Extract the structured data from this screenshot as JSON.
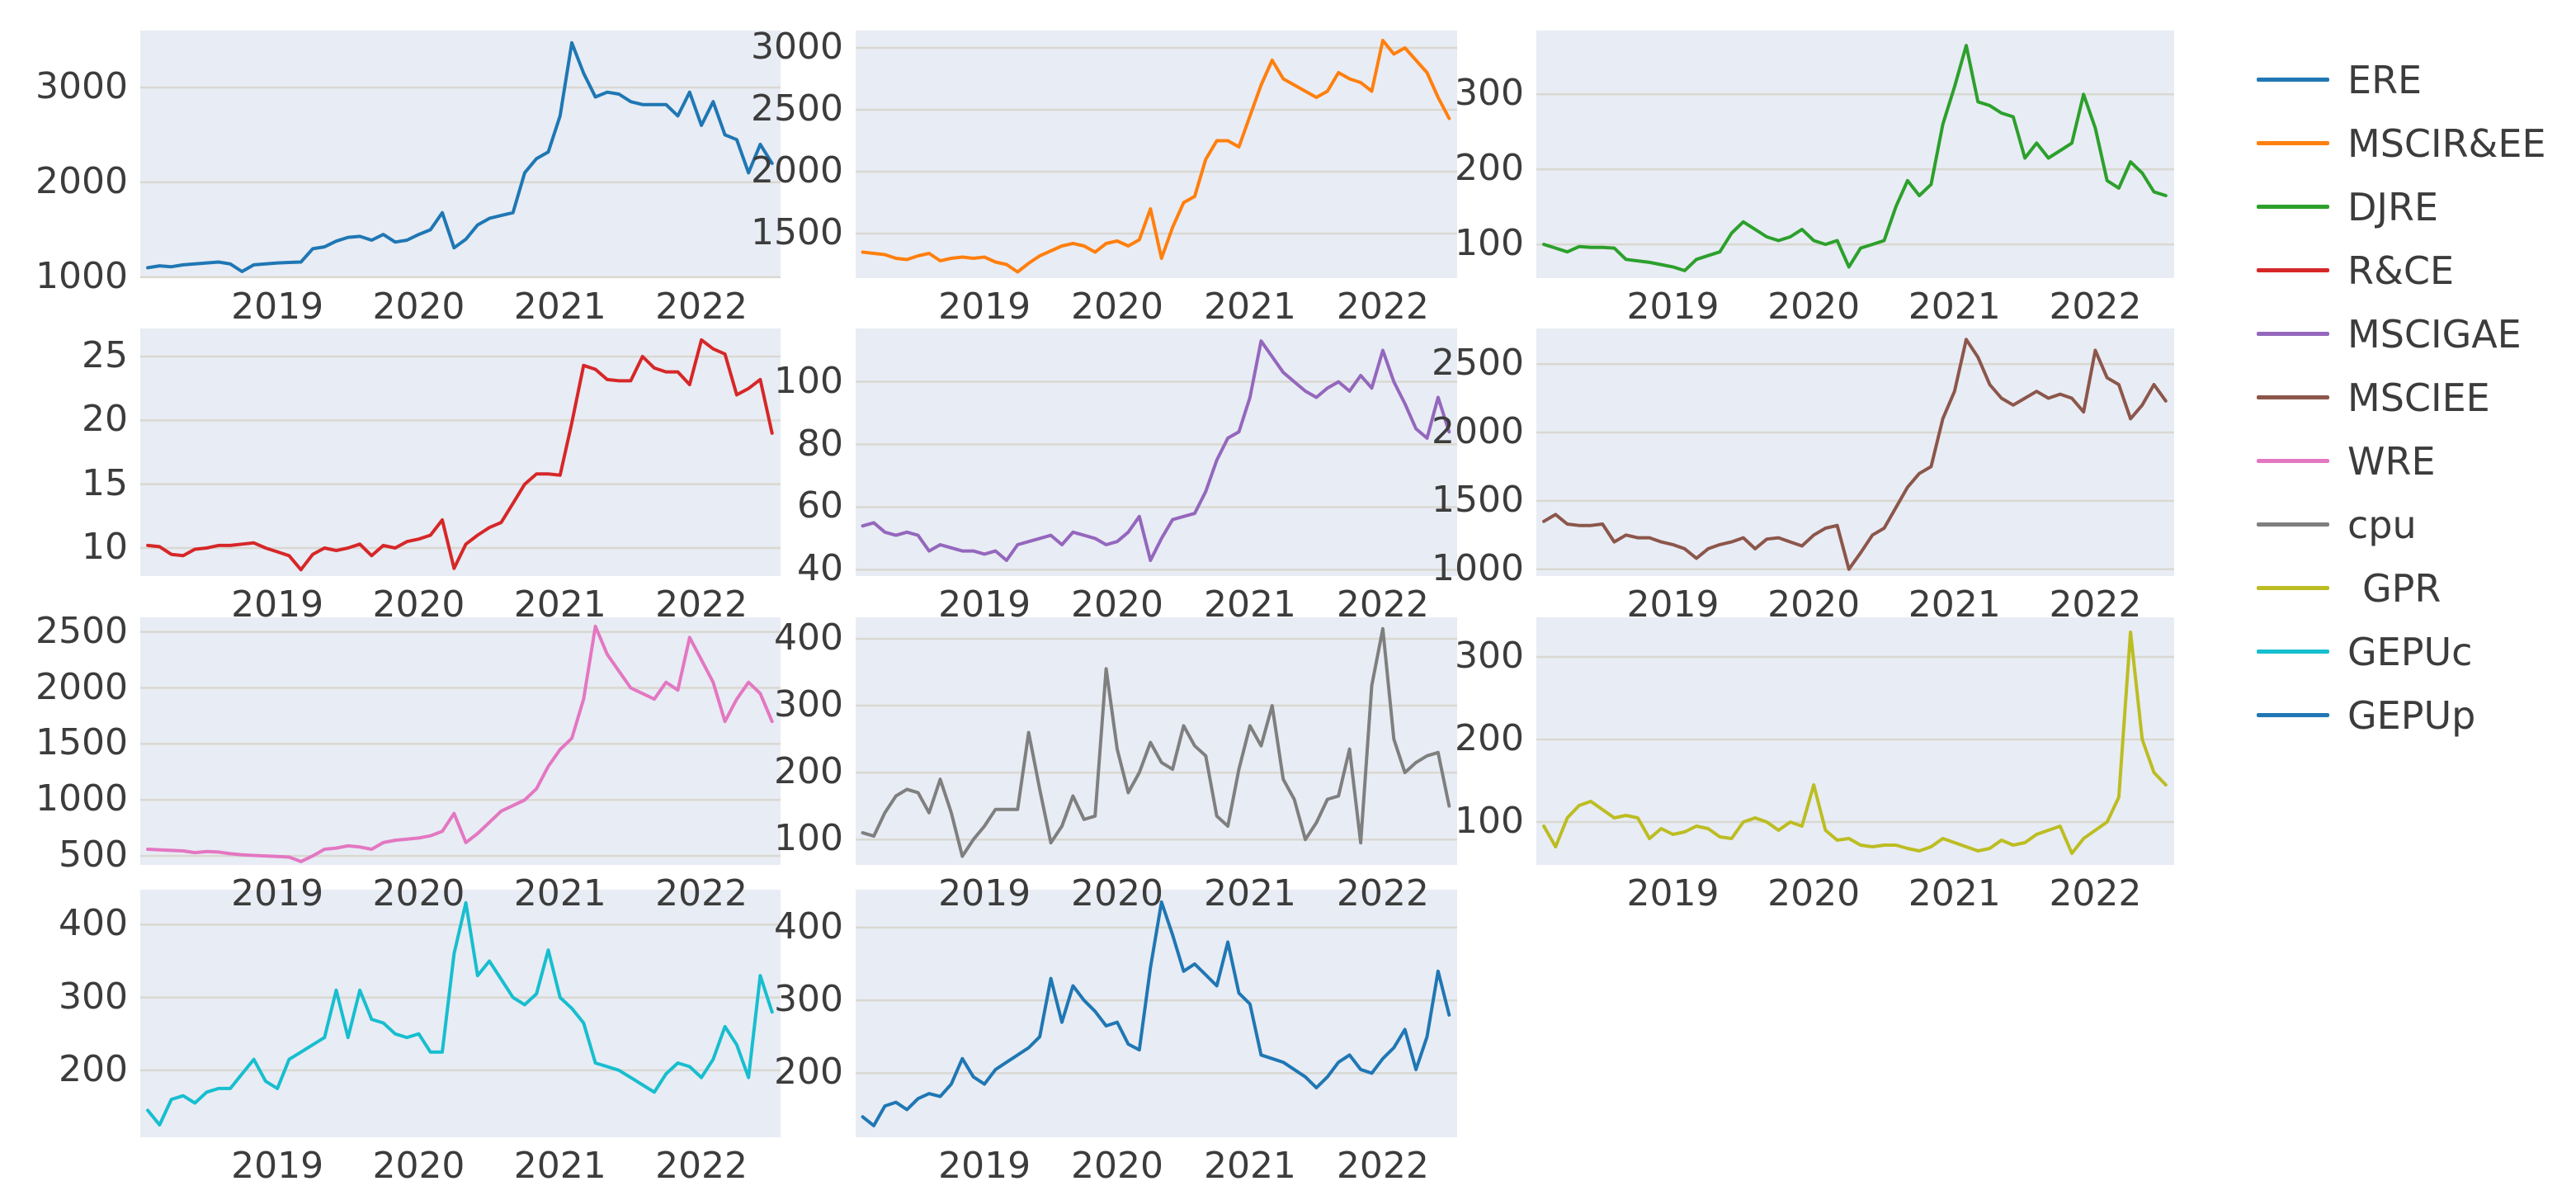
{
  "figure": {
    "background": "#ffffff",
    "plot_background": "#e8ecf4",
    "gridline_color": "#d9d8d1",
    "tick_color": "#3c3c3c"
  },
  "legend": {
    "position": "right",
    "items": [
      {
        "label": "ERE",
        "color": "#1f77b4"
      },
      {
        "label": "MSCIR&EE",
        "color": "#ff7f0e"
      },
      {
        "label": "DJRE",
        "color": "#2ca02c"
      },
      {
        "label": "R&CE",
        "color": "#d62728"
      },
      {
        "label": "MSCIGAE",
        "color": "#9467bd"
      },
      {
        "label": "MSCIEE",
        "color": "#8c564b"
      },
      {
        "label": "WRE",
        "color": "#e377c2"
      },
      {
        "label": "cpu",
        "color": "#7f7f7f"
      },
      {
        "label": "GPR",
        "color": "#bcbd22"
      },
      {
        "label": "GEPUc",
        "color": "#17becf"
      },
      {
        "label": "GEPUp",
        "color": "#1f77b4"
      }
    ]
  },
  "axes": {
    "xticks": [
      "2019",
      "2020",
      "2021",
      "2022"
    ],
    "xlim": [
      2018.03,
      2022.56
    ],
    "x_start": 2018.0833,
    "x_step": 0.083333,
    "x_unit": "decimal year, monthly samples Feb 2018 - Jul 2022",
    "grid": "horizontal only"
  },
  "chart_data": [
    {
      "type": "line",
      "name": "ERE",
      "color": "#1f77b4",
      "yticks": [
        1000,
        2000,
        3000
      ],
      "ylim": [
        990,
        3600
      ],
      "values": [
        1100,
        1120,
        1110,
        1130,
        1140,
        1150,
        1160,
        1140,
        1060,
        1130,
        1140,
        1150,
        1155,
        1160,
        1300,
        1320,
        1380,
        1420,
        1430,
        1390,
        1450,
        1370,
        1390,
        1450,
        1500,
        1680,
        1310,
        1400,
        1550,
        1620,
        1650,
        1680,
        2100,
        2250,
        2320,
        2700,
        3470,
        3150,
        2900,
        2950,
        2930,
        2850,
        2820,
        2820,
        2820,
        2700,
        2950,
        2600,
        2850,
        2500,
        2450,
        2100,
        2400,
        2200
      ]
    },
    {
      "type": "line",
      "name": "MSCIR&EE",
      "color": "#ff7f0e",
      "yticks": [
        1500,
        2000,
        2500,
        3000
      ],
      "ylim": [
        1140,
        3140
      ],
      "values": [
        1350,
        1340,
        1330,
        1300,
        1290,
        1320,
        1340,
        1280,
        1300,
        1310,
        1300,
        1310,
        1270,
        1250,
        1190,
        1260,
        1320,
        1360,
        1400,
        1420,
        1400,
        1350,
        1420,
        1440,
        1400,
        1450,
        1700,
        1300,
        1550,
        1750,
        1800,
        2100,
        2250,
        2250,
        2200,
        2450,
        2700,
        2900,
        2750,
        2700,
        2650,
        2600,
        2650,
        2800,
        2750,
        2720,
        2650,
        3060,
        2950,
        3000,
        2900,
        2800,
        2600,
        2430
      ]
    },
    {
      "type": "line",
      "name": "DJRE",
      "color": "#2ca02c",
      "yticks": [
        100,
        200,
        300
      ],
      "ylim": [
        55,
        385
      ],
      "values": [
        100,
        95,
        90,
        97,
        96,
        96,
        95,
        80,
        78,
        76,
        73,
        70,
        65,
        80,
        85,
        90,
        115,
        130,
        120,
        110,
        105,
        110,
        120,
        105,
        100,
        105,
        70,
        95,
        100,
        105,
        150,
        185,
        165,
        180,
        260,
        310,
        365,
        290,
        285,
        275,
        270,
        215,
        235,
        215,
        225,
        235,
        300,
        255,
        185,
        175,
        210,
        195,
        170,
        165
      ]
    },
    {
      "type": "line",
      "name": "R&CE",
      "color": "#d62728",
      "yticks": [
        10,
        15,
        20,
        25
      ],
      "ylim": [
        7.8,
        27.2
      ],
      "values": [
        10.2,
        10.1,
        9.5,
        9.4,
        9.9,
        10.0,
        10.2,
        10.2,
        10.3,
        10.4,
        10.0,
        9.7,
        9.4,
        8.3,
        9.5,
        10.0,
        9.8,
        10.0,
        10.3,
        9.4,
        10.2,
        10.0,
        10.5,
        10.7,
        11.0,
        12.2,
        8.4,
        10.3,
        11.0,
        11.6,
        12.0,
        13.5,
        15.0,
        15.8,
        15.8,
        15.7,
        19.8,
        24.3,
        24.0,
        23.2,
        23.1,
        23.1,
        25.0,
        24.1,
        23.8,
        23.8,
        22.8,
        26.3,
        25.6,
        25.2,
        22.0,
        22.5,
        23.2,
        19.0
      ]
    },
    {
      "type": "line",
      "name": "MSCIGAE",
      "color": "#9467bd",
      "yticks": [
        40,
        60,
        80,
        100
      ],
      "ylim": [
        38,
        117
      ],
      "values": [
        54,
        55,
        52,
        51,
        52,
        51,
        46,
        48,
        47,
        46,
        46,
        45,
        46,
        43,
        48,
        49,
        50,
        51,
        48,
        52,
        51,
        50,
        48,
        49,
        52,
        57,
        43,
        50,
        56,
        57,
        58,
        65,
        75,
        82,
        84,
        95,
        113,
        108,
        103,
        100,
        97,
        95,
        98,
        100,
        97,
        102,
        98,
        110,
        100,
        93,
        85,
        82,
        95,
        84
      ]
    },
    {
      "type": "line",
      "name": "MSCIEE",
      "color": "#8c564b",
      "yticks": [
        1000,
        1500,
        2000,
        2500
      ],
      "ylim": [
        950,
        2760
      ],
      "values": [
        1350,
        1400,
        1330,
        1320,
        1320,
        1330,
        1200,
        1250,
        1230,
        1230,
        1200,
        1180,
        1150,
        1080,
        1150,
        1180,
        1200,
        1230,
        1150,
        1220,
        1230,
        1200,
        1170,
        1250,
        1300,
        1320,
        1000,
        1120,
        1250,
        1300,
        1450,
        1600,
        1700,
        1750,
        2100,
        2300,
        2680,
        2550,
        2350,
        2250,
        2200,
        2250,
        2300,
        2250,
        2280,
        2250,
        2150,
        2600,
        2400,
        2350,
        2100,
        2200,
        2350,
        2230
      ]
    },
    {
      "type": "line",
      "name": "WRE",
      "color": "#e377c2",
      "yticks": [
        500,
        1000,
        1500,
        2000,
        2500
      ],
      "ylim": [
        420,
        2630
      ],
      "values": [
        560,
        555,
        550,
        545,
        530,
        540,
        535,
        520,
        510,
        505,
        500,
        495,
        490,
        450,
        500,
        560,
        570,
        590,
        580,
        560,
        620,
        640,
        650,
        660,
        680,
        720,
        880,
        620,
        700,
        800,
        900,
        950,
        1000,
        1100,
        1300,
        1450,
        1550,
        1900,
        2550,
        2300,
        2150,
        2000,
        1950,
        1900,
        2050,
        1980,
        2450,
        2250,
        2050,
        1700,
        1900,
        2050,
        1950,
        1700
      ]
    },
    {
      "type": "line",
      "name": "cpu",
      "color": "#7f7f7f",
      "yticks": [
        100,
        200,
        300,
        400
      ],
      "ylim": [
        62,
        432
      ],
      "values": [
        110,
        105,
        140,
        165,
        175,
        170,
        140,
        190,
        140,
        75,
        100,
        120,
        145,
        145,
        145,
        260,
        175,
        95,
        120,
        165,
        130,
        135,
        355,
        235,
        170,
        200,
        245,
        215,
        205,
        270,
        240,
        225,
        135,
        120,
        205,
        270,
        240,
        300,
        190,
        160,
        100,
        125,
        160,
        165,
        235,
        95,
        330,
        415,
        250,
        200,
        215,
        225,
        230,
        150
      ]
    },
    {
      "type": "line",
      "name": "GPR",
      "color": "#bcbd22",
      "yticks": [
        100,
        200,
        300
      ],
      "ylim": [
        48,
        348
      ],
      "values": [
        95,
        70,
        105,
        120,
        125,
        115,
        105,
        108,
        105,
        80,
        92,
        85,
        88,
        95,
        92,
        82,
        80,
        100,
        105,
        100,
        90,
        100,
        95,
        145,
        90,
        78,
        80,
        72,
        70,
        72,
        72,
        68,
        65,
        70,
        80,
        75,
        70,
        65,
        68,
        78,
        72,
        75,
        85,
        90,
        95,
        62,
        80,
        90,
        100,
        130,
        330,
        200,
        160,
        145
      ]
    },
    {
      "type": "line",
      "name": "GEPUc",
      "color": "#17becf",
      "yticks": [
        200,
        300,
        400
      ],
      "ylim": [
        108,
        448
      ],
      "values": [
        145,
        125,
        160,
        165,
        155,
        170,
        175,
        175,
        195,
        215,
        185,
        175,
        215,
        225,
        235,
        245,
        310,
        245,
        310,
        270,
        265,
        250,
        245,
        250,
        225,
        225,
        360,
        430,
        330,
        350,
        325,
        300,
        290,
        305,
        365,
        300,
        285,
        265,
        210,
        205,
        200,
        190,
        180,
        170,
        195,
        210,
        205,
        190,
        215,
        260,
        235,
        190,
        330,
        280
      ]
    },
    {
      "type": "line",
      "name": "GEPUp",
      "color": "#1f77b4",
      "yticks": [
        200,
        300,
        400
      ],
      "ylim": [
        112,
        452
      ],
      "values": [
        140,
        128,
        155,
        160,
        150,
        165,
        172,
        168,
        185,
        220,
        195,
        185,
        205,
        215,
        225,
        235,
        250,
        330,
        270,
        320,
        300,
        285,
        265,
        270,
        240,
        232,
        345,
        435,
        390,
        340,
        350,
        335,
        320,
        380,
        310,
        295,
        225,
        220,
        215,
        205,
        195,
        180,
        195,
        215,
        225,
        205,
        200,
        220,
        235,
        260,
        205,
        250,
        340,
        280
      ]
    }
  ]
}
